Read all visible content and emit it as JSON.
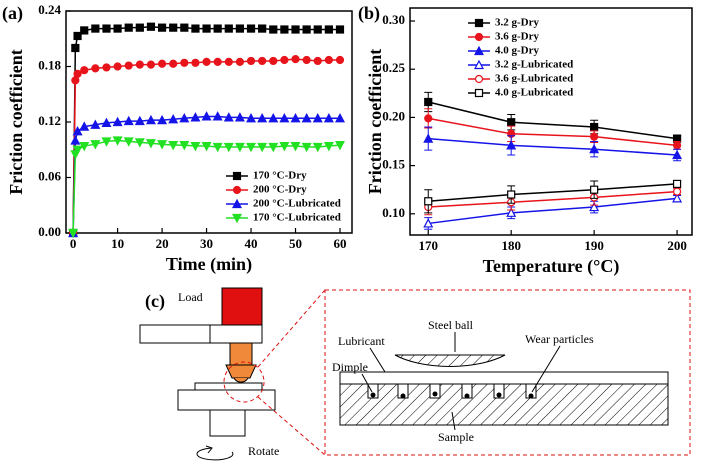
{
  "chart_data": [
    {
      "type": "line",
      "panel_label": "(a)",
      "xlabel": "Time (min)",
      "ylabel": "Friction coefficient",
      "x": [
        0,
        0.5,
        1,
        2.5,
        5,
        7.5,
        10,
        12.5,
        15,
        17.5,
        20,
        22.5,
        25,
        27.5,
        30,
        32.5,
        35,
        37.5,
        40,
        42.5,
        45,
        47.5,
        50,
        52.5,
        55,
        57.5,
        60
      ],
      "xlim": [
        -1.6,
        62.7
      ],
      "xticks": [
        0,
        10,
        20,
        30,
        40,
        50,
        60
      ],
      "ylim": [
        0,
        0.24
      ],
      "yticks": [
        {
          "value": 0,
          "label": "0.00"
        },
        0.06,
        0.12,
        0.18,
        0.24
      ],
      "legend": "lower right",
      "series": [
        {
          "name": "170 °C-Dry",
          "color": "#000000",
          "marker": "square",
          "filled": true,
          "values": [
            0,
            0.2,
            0.213,
            0.219,
            0.221,
            0.221,
            0.221,
            0.222,
            0.222,
            0.223,
            0.222,
            0.222,
            0.222,
            0.221,
            0.221,
            0.221,
            0.221,
            0.221,
            0.221,
            0.221,
            0.22,
            0.22,
            0.22,
            0.22,
            0.22,
            0.22,
            0.22
          ]
        },
        {
          "name": "200 °C-Dry",
          "color": "#e8141c",
          "marker": "circle",
          "filled": true,
          "values": [
            0,
            0.165,
            0.172,
            0.176,
            0.178,
            0.179,
            0.18,
            0.181,
            0.182,
            0.182,
            0.183,
            0.183,
            0.184,
            0.184,
            0.185,
            0.185,
            0.185,
            0.185,
            0.186,
            0.186,
            0.186,
            0.187,
            0.188,
            0.187,
            0.186,
            0.187,
            0.187
          ]
        },
        {
          "name": "200 °C-Lubricated",
          "color": "#1414e8",
          "marker": "triangle-up",
          "filled": true,
          "values": [
            0,
            0.1,
            0.11,
            0.115,
            0.117,
            0.119,
            0.12,
            0.121,
            0.121,
            0.122,
            0.122,
            0.123,
            0.124,
            0.125,
            0.126,
            0.126,
            0.125,
            0.125,
            0.124,
            0.124,
            0.124,
            0.124,
            0.124,
            0.124,
            0.124,
            0.124,
            0.124
          ]
        },
        {
          "name": "170 °C-Lubricated",
          "color": "#22e022",
          "marker": "triangle-down",
          "filled": true,
          "values": [
            0,
            0.085,
            0.09,
            0.094,
            0.096,
            0.099,
            0.1,
            0.099,
            0.098,
            0.097,
            0.096,
            0.095,
            0.095,
            0.094,
            0.094,
            0.093,
            0.093,
            0.093,
            0.093,
            0.093,
            0.093,
            0.094,
            0.094,
            0.093,
            0.093,
            0.094,
            0.095
          ]
        }
      ]
    },
    {
      "type": "line",
      "panel_label": "(b)",
      "xlabel": "Temperature (°C)",
      "ylabel": "Friction coefficient",
      "x": [
        170,
        180,
        190,
        200
      ],
      "xlim": [
        167.8,
        201.8
      ],
      "xticks": [
        170,
        180,
        190,
        200
      ],
      "ylim": [
        0.078,
        0.3135
      ],
      "yticks": [
        {
          "value": 0.1,
          "label": "0.10"
        },
        0.15,
        {
          "value": 0.2,
          "label": "0.20"
        },
        0.25,
        {
          "value": 0.3,
          "label": "0.30"
        }
      ],
      "legend": "upper left",
      "series": [
        {
          "name": "3.2 g-Dry",
          "color": "#000000",
          "marker": "square",
          "filled": true,
          "values": [
            0.216,
            0.195,
            0.19,
            0.178
          ],
          "errors": [
            0.01,
            0.008,
            0.007,
            0.003
          ]
        },
        {
          "name": "3.6 g-Dry",
          "color": "#e8141c",
          "marker": "circle",
          "filled": true,
          "values": [
            0.199,
            0.183,
            0.18,
            0.171
          ],
          "errors": [
            0.01,
            0.008,
            0.006,
            0.004
          ]
        },
        {
          "name": "4.0 g-Dry",
          "color": "#1414e8",
          "marker": "triangle-up",
          "filled": true,
          "values": [
            0.178,
            0.171,
            0.167,
            0.161
          ],
          "errors": [
            0.012,
            0.01,
            0.008,
            0.006
          ]
        },
        {
          "name": "3.2 g-Lubricated",
          "color": "#1414e8",
          "marker": "triangle-up",
          "filled": false,
          "values": [
            0.09,
            0.101,
            0.107,
            0.116
          ],
          "errors": [
            0.006,
            0.006,
            0.006,
            0.003
          ]
        },
        {
          "name": "3.6 g-Lubricated",
          "color": "#e8141c",
          "marker": "circle",
          "filled": false,
          "values": [
            0.107,
            0.112,
            0.117,
            0.123
          ],
          "errors": [
            0.008,
            0.008,
            0.008,
            0.003
          ]
        },
        {
          "name": "4.0 g-Lubricated",
          "color": "#000000",
          "marker": "square",
          "filled": false,
          "values": [
            0.113,
            0.12,
            0.125,
            0.131
          ],
          "errors": [
            0.012,
            0.009,
            0.009,
            0.003
          ]
        }
      ]
    }
  ],
  "diagram": {
    "label": "(c)",
    "load": "Load",
    "rotate": "Rotate",
    "lubricant": "Lubricant",
    "steel_ball": "Steel ball",
    "dimple": "Dimple",
    "wear_particles": "Wear particles",
    "sample": "Sample"
  }
}
